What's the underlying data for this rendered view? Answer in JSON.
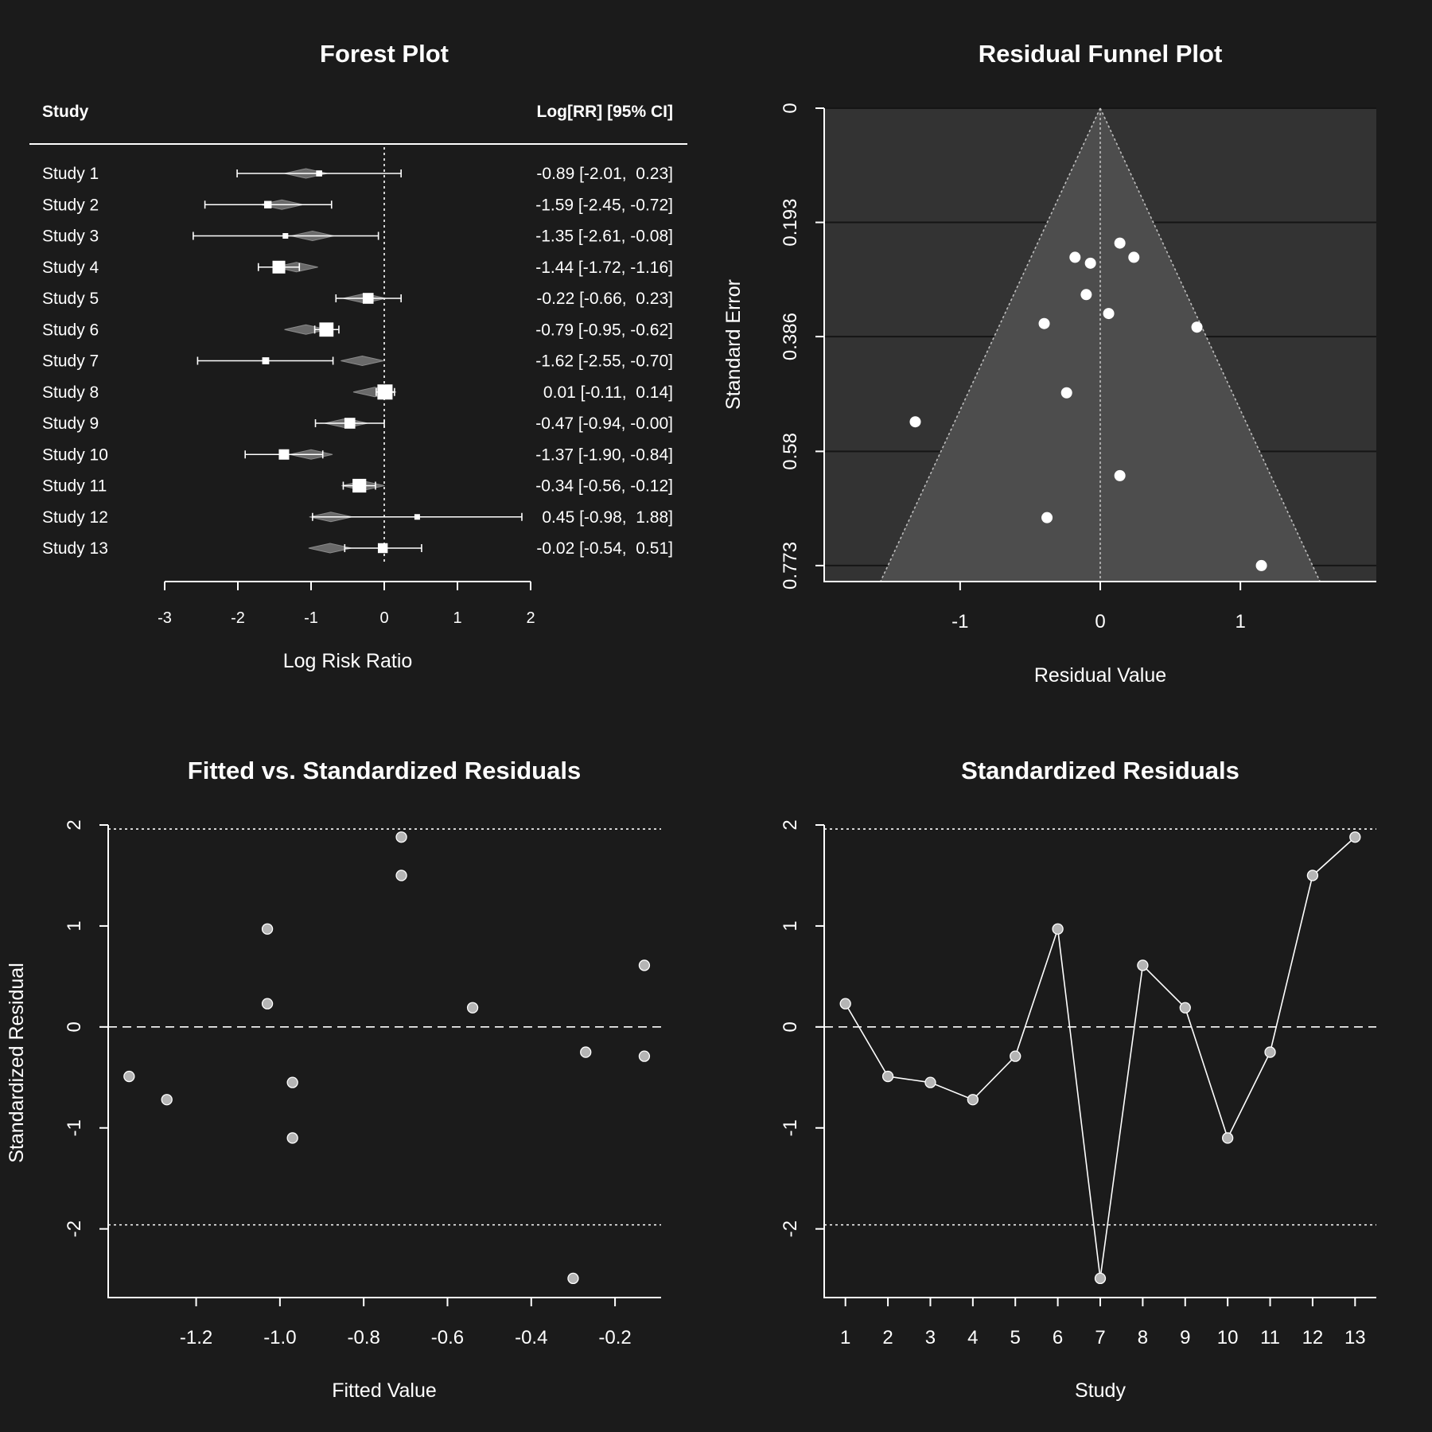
{
  "chart_data": [
    {
      "type": "forest",
      "title": "Forest Plot",
      "xlabel": "Log Risk Ratio",
      "header_study": "Study",
      "header_estimate": "Log[RR] [95% CI]",
      "xlim": [
        -3,
        2
      ],
      "xticks": [
        "-3",
        "-2",
        "-1",
        "0",
        "1",
        "2"
      ],
      "reference_line": 0,
      "studies": [
        {
          "label": "Study 1",
          "est": -0.89,
          "lo": -2.01,
          "hi": 0.23,
          "ci_text": "-0.89 [-2.01,  0.23]",
          "pred": -1.07,
          "weight": 0.3
        },
        {
          "label": "Study 2",
          "est": -1.59,
          "lo": -2.45,
          "hi": -0.72,
          "ci_text": "-1.59 [-2.45, -0.72]",
          "pred": -1.4,
          "weight": 0.45
        },
        {
          "label": "Study 3",
          "est": -1.35,
          "lo": -2.61,
          "hi": -0.08,
          "ci_text": "-1.35 [-2.61, -0.08]",
          "pred": -0.98,
          "weight": 0.25
        },
        {
          "label": "Study 4",
          "est": -1.44,
          "lo": -1.72,
          "hi": -1.16,
          "ci_text": "-1.44 [-1.72, -1.16]",
          "pred": -1.2,
          "weight": 1.0
        },
        {
          "label": "Study 5",
          "est": -0.22,
          "lo": -0.66,
          "hi": 0.23,
          "ci_text": "-0.22 [-0.66,  0.23]",
          "pred": -0.27,
          "weight": 0.8
        },
        {
          "label": "Study 6",
          "est": -0.79,
          "lo": -0.95,
          "hi": -0.62,
          "ci_text": "-0.79 [-0.95, -0.62]",
          "pred": -1.07,
          "weight": 1.15
        },
        {
          "label": "Study 7",
          "est": -1.62,
          "lo": -2.55,
          "hi": -0.7,
          "ci_text": "-1.62 [-2.55, -0.70]",
          "pred": -0.3,
          "weight": 0.4
        },
        {
          "label": "Study 8",
          "est": 0.01,
          "lo": -0.11,
          "hi": 0.14,
          "ci_text": " 0.01 [-0.11,  0.14]",
          "pred": -0.13,
          "weight": 1.25
        },
        {
          "label": "Study 9",
          "est": -0.47,
          "lo": -0.94,
          "hi": -0.0,
          "ci_text": "-0.47 [-0.94, -0.00]",
          "pred": -0.52,
          "weight": 0.8
        },
        {
          "label": "Study 10",
          "est": -1.37,
          "lo": -1.9,
          "hi": -0.84,
          "ci_text": "-1.37 [-1.90, -0.84]",
          "pred": -1.0,
          "weight": 0.75
        },
        {
          "label": "Study 11",
          "est": -0.34,
          "lo": -0.56,
          "hi": -0.12,
          "ci_text": "-0.34 [-0.56, -0.12]",
          "pred": -0.29,
          "weight": 1.1
        },
        {
          "label": "Study 12",
          "est": 0.45,
          "lo": -0.98,
          "hi": 1.88,
          "ci_text": " 0.45 [-0.98,  1.88]",
          "pred": -0.73,
          "weight": 0.25
        },
        {
          "label": "Study 13",
          "est": -0.02,
          "lo": -0.54,
          "hi": 0.51,
          "ci_text": "-0.02 [-0.54,  0.51]",
          "pred": -0.74,
          "weight": 0.7
        }
      ]
    },
    {
      "type": "scatter",
      "title": "Residual Funnel Plot",
      "xlabel": "Residual Value",
      "ylabel": "Standard Error",
      "xlim": [
        -1.97,
        1.97
      ],
      "ylim": [
        0.8,
        0
      ],
      "xticks": [
        -1,
        0,
        1
      ],
      "yticks": [
        "0",
        "0.193",
        "0.386",
        "0.58",
        "0.773"
      ],
      "grid": true,
      "points": [
        {
          "x": 0.14,
          "y": 0.228
        },
        {
          "x": 0.24,
          "y": 0.252
        },
        {
          "x": -0.18,
          "y": 0.252
        },
        {
          "x": -0.07,
          "y": 0.262
        },
        {
          "x": -0.1,
          "y": 0.315
        },
        {
          "x": 0.06,
          "y": 0.347
        },
        {
          "x": -0.4,
          "y": 0.364
        },
        {
          "x": 0.69,
          "y": 0.37
        },
        {
          "x": -0.24,
          "y": 0.481
        },
        {
          "x": -1.32,
          "y": 0.53
        },
        {
          "x": 0.14,
          "y": 0.621
        },
        {
          "x": -0.38,
          "y": 0.692
        },
        {
          "x": 1.15,
          "y": 0.773
        }
      ]
    },
    {
      "type": "scatter",
      "title": "Fitted vs. Standardized Residuals",
      "xlabel": "Fitted Value",
      "ylabel": "Standardized Residual",
      "xlim": [
        -1.41,
        -0.09
      ],
      "ylim": [
        -2.68,
        2.0
      ],
      "xticks": [
        "-1.2",
        "-1.0",
        "-0.8",
        "-0.6",
        "-0.4",
        "-0.2"
      ],
      "yticks": [
        "-2",
        "-1",
        "0",
        "1",
        "2"
      ],
      "hlines": [
        1.96,
        0,
        -1.96
      ],
      "points": [
        {
          "x": -1.36,
          "y": -0.49
        },
        {
          "x": -1.27,
          "y": -0.72
        },
        {
          "x": -1.03,
          "y": 0.97
        },
        {
          "x": -1.03,
          "y": 0.23
        },
        {
          "x": -0.97,
          "y": -0.55
        },
        {
          "x": -0.97,
          "y": -1.1
        },
        {
          "x": -0.71,
          "y": 1.88
        },
        {
          "x": -0.71,
          "y": 1.5
        },
        {
          "x": -0.54,
          "y": 0.19
        },
        {
          "x": -0.3,
          "y": -2.49
        },
        {
          "x": -0.27,
          "y": -0.25
        },
        {
          "x": -0.13,
          "y": 0.61
        },
        {
          "x": -0.13,
          "y": -0.29
        }
      ]
    },
    {
      "type": "line",
      "title": "Standardized Residuals",
      "xlabel": "Study",
      "ylabel": "",
      "xlim": [
        0.5,
        13.5
      ],
      "ylim": [
        -2.68,
        2.0
      ],
      "xticks": [
        "1",
        "2",
        "3",
        "4",
        "5",
        "6",
        "7",
        "8",
        "9",
        "10",
        "11",
        "12",
        "13"
      ],
      "yticks": [
        "-2",
        "-1",
        "0",
        "1",
        "2"
      ],
      "hlines": [
        1.96,
        0,
        -1.96
      ],
      "x": [
        1,
        2,
        3,
        4,
        5,
        6,
        7,
        8,
        9,
        10,
        11,
        12,
        13
      ],
      "y": [
        0.23,
        -0.49,
        -0.55,
        -0.72,
        -0.29,
        0.97,
        -2.49,
        0.61,
        0.19,
        -1.1,
        -0.25,
        1.5,
        1.88
      ]
    }
  ]
}
